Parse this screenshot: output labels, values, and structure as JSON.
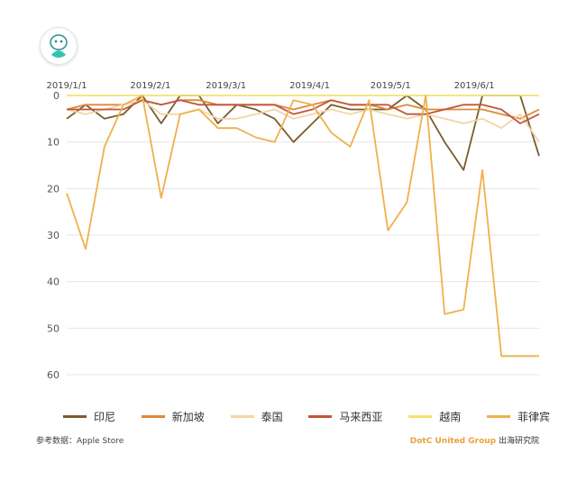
{
  "chart_data": {
    "type": "line",
    "y_axis_inverted": true,
    "ylim": [
      0,
      60
    ],
    "yticks": [
      0,
      10,
      20,
      30,
      40,
      50,
      60
    ],
    "x": [
      "2019-01-01",
      "2019-01-08",
      "2019-01-15",
      "2019-01-22",
      "2019-01-29",
      "2019-02-05",
      "2019-02-12",
      "2019-02-19",
      "2019-02-26",
      "2019-03-05",
      "2019-03-12",
      "2019-03-19",
      "2019-03-26",
      "2019-04-02",
      "2019-04-09",
      "2019-04-16",
      "2019-04-23",
      "2019-04-30",
      "2019-05-07",
      "2019-05-14",
      "2019-05-21",
      "2019-05-28",
      "2019-06-04",
      "2019-06-11",
      "2019-06-18",
      "2019-06-25"
    ],
    "xtick_labels": [
      "2019/1/1",
      "2019/2/1",
      "2019/3/1",
      "2019/4/1",
      "2019/5/1",
      "2019/6/1"
    ],
    "xtick_positions": [
      0,
      4.43,
      8.43,
      12.86,
      17.14,
      21.57
    ],
    "grid": "horizontal",
    "legend_position": "bottom",
    "series": [
      {
        "name": "印尼",
        "color": "#7a5c2e",
        "values": [
          5,
          2,
          5,
          4,
          0,
          6,
          0,
          0,
          6,
          2,
          3,
          5,
          10,
          6,
          2,
          3,
          3,
          3,
          0,
          3,
          10,
          16,
          0,
          0,
          0,
          13
        ]
      },
      {
        "name": "新加坡",
        "color": "#e0883a",
        "values": [
          3,
          2,
          2,
          2,
          1,
          2,
          1,
          1,
          2,
          2,
          2,
          2,
          3,
          2,
          1,
          2,
          2,
          3,
          2,
          3,
          3,
          3,
          3,
          4,
          5,
          3
        ]
      },
      {
        "name": "泰国",
        "color": "#f3d5a6",
        "values": [
          3,
          4,
          3,
          2,
          1,
          4,
          4,
          3,
          5,
          5,
          4,
          3,
          5,
          4,
          3,
          4,
          3,
          4,
          5,
          4,
          5,
          6,
          5,
          7,
          4,
          10
        ]
      },
      {
        "name": "马来西亚",
        "color": "#c0573a",
        "values": [
          3,
          3,
          3,
          3,
          1,
          2,
          1,
          2,
          2,
          2,
          2,
          2,
          4,
          3,
          1,
          2,
          2,
          2,
          4,
          4,
          3,
          2,
          2,
          3,
          6,
          4
        ]
      },
      {
        "name": "越南",
        "color": "#f5e070",
        "values": [
          0,
          0,
          0,
          0,
          0,
          0,
          0,
          0,
          0,
          0,
          0,
          0,
          0,
          0,
          0,
          0,
          0,
          0,
          0,
          0,
          0,
          0,
          0,
          0,
          0,
          0
        ]
      },
      {
        "name": "菲律宾",
        "color": "#f0b04a",
        "values": [
          21,
          33,
          11,
          2,
          0,
          22,
          4,
          3,
          7,
          7,
          9,
          10,
          1,
          2,
          8,
          11,
          1,
          29,
          23,
          0,
          47,
          46,
          16,
          56,
          56,
          56
        ]
      }
    ]
  },
  "chart_type_note": "",
  "legend": [
    {
      "label": "印尼",
      "color": "#7a5c2e"
    },
    {
      "label": "新加坡",
      "color": "#e0883a"
    },
    {
      "label": "泰国",
      "color": "#f3d5a6"
    },
    {
      "label": "马来西亚",
      "color": "#c0573a"
    },
    {
      "label": "越南",
      "color": "#f5e070"
    },
    {
      "label": "菲律宾",
      "color": "#f0b04a"
    }
  ],
  "footer": {
    "source": "参考数据：Apple Store",
    "brand": "DotC United Group",
    "org": " 出海研究院"
  },
  "logo_icon": "mascot-logo-icon"
}
